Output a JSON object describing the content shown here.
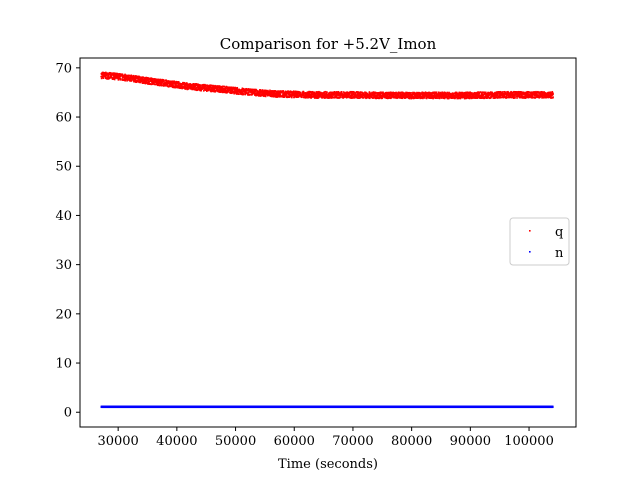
{
  "chart_data": {
    "type": "scatter",
    "title": "Comparison for +5.2V_Imon",
    "xlabel": "Time (seconds)",
    "ylabel": "",
    "xlim": [
      23500,
      108000
    ],
    "ylim": [
      -3,
      72
    ],
    "xticks": [
      30000,
      40000,
      50000,
      60000,
      70000,
      80000,
      90000,
      100000
    ],
    "yticks": [
      0,
      10,
      20,
      30,
      40,
      50,
      60,
      70
    ],
    "grid": false,
    "legend_position": "center-right",
    "series": [
      {
        "name": "q",
        "color": "#ff0000",
        "points": [
          [
            27000,
            68.5
          ],
          [
            30000,
            68.2
          ],
          [
            33000,
            67.7
          ],
          [
            36000,
            67.2
          ],
          [
            39000,
            66.7
          ],
          [
            42000,
            66.2
          ],
          [
            45000,
            65.9
          ],
          [
            48000,
            65.6
          ],
          [
            51000,
            65.2
          ],
          [
            54000,
            64.9
          ],
          [
            57000,
            64.7
          ],
          [
            60000,
            64.6
          ],
          [
            63000,
            64.5
          ],
          [
            66000,
            64.5
          ],
          [
            70000,
            64.5
          ],
          [
            75000,
            64.4
          ],
          [
            80000,
            64.4
          ],
          [
            85000,
            64.4
          ],
          [
            90000,
            64.4
          ],
          [
            95000,
            64.5
          ],
          [
            100000,
            64.5
          ],
          [
            104000,
            64.5
          ]
        ]
      },
      {
        "name": "n",
        "color": "#0000ff",
        "points": [
          [
            27000,
            1.1
          ],
          [
            40000,
            1.1
          ],
          [
            55000,
            1.1
          ],
          [
            70000,
            1.1
          ],
          [
            85000,
            1.1
          ],
          [
            104000,
            1.1
          ]
        ]
      }
    ]
  }
}
